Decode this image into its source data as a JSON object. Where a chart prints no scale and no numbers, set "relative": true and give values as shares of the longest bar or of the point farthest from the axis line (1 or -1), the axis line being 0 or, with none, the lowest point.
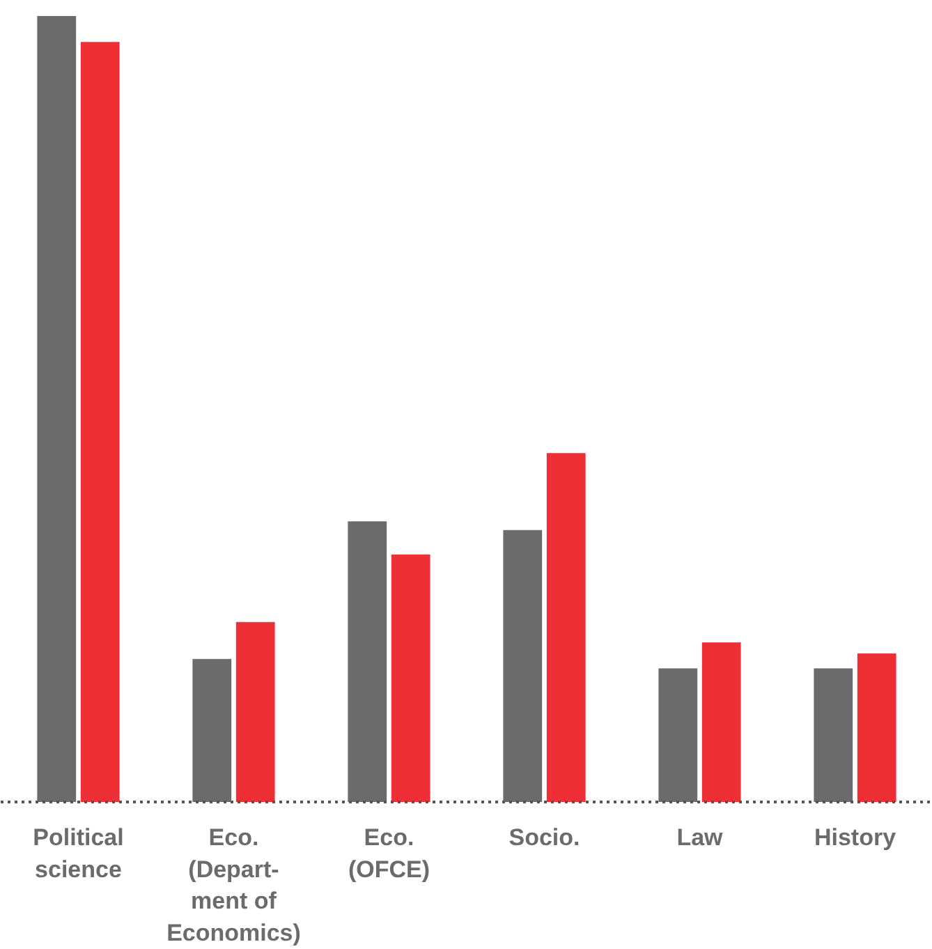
{
  "chart_data": {
    "type": "bar",
    "relative": true,
    "categories": [
      "Political\nscience",
      "Eco.\n(Depart-\nment of\nEconomics)",
      "Eco.\n(OFCE)",
      "Socio.",
      "Law",
      "History"
    ],
    "series": [
      {
        "color": "#6b6b6e",
        "values": [
          1,
          0.182,
          0.357,
          0.346,
          0.17,
          0.17
        ]
      },
      {
        "color": "#ee2f36",
        "values": [
          0.967,
          0.229,
          0.315,
          0.444,
          0.203,
          0.189
        ]
      }
    ],
    "orientation": "vertical"
  }
}
